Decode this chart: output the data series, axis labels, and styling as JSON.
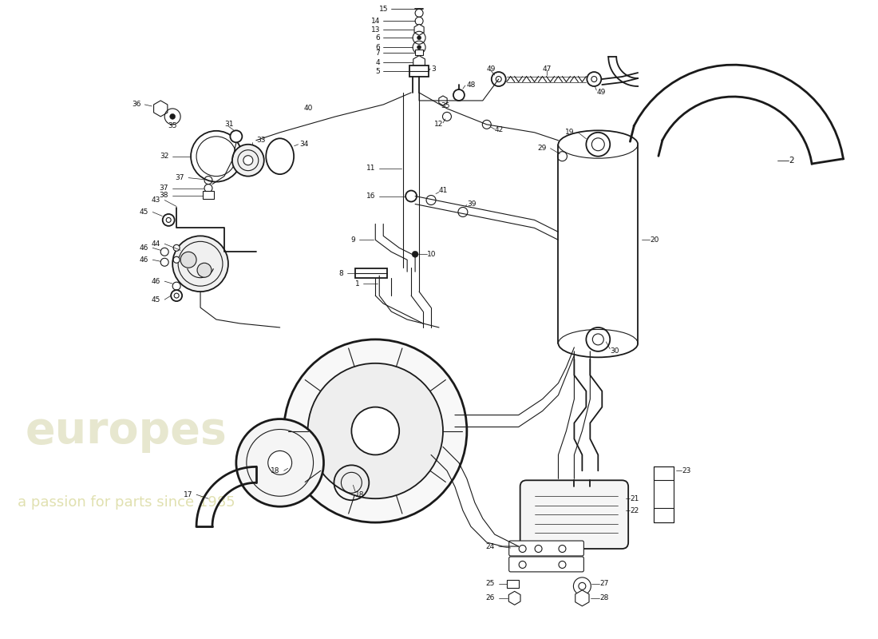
{
  "bg_color": "#ffffff",
  "line_color": "#1a1a1a",
  "label_color": "#111111",
  "wm1_color": "#d8d8b0",
  "wm2_color": "#c8c870",
  "fig_width": 11.0,
  "fig_height": 8.0,
  "dpi": 100,
  "xlim": [
    0,
    110
  ],
  "ylim": [
    0,
    80
  ]
}
